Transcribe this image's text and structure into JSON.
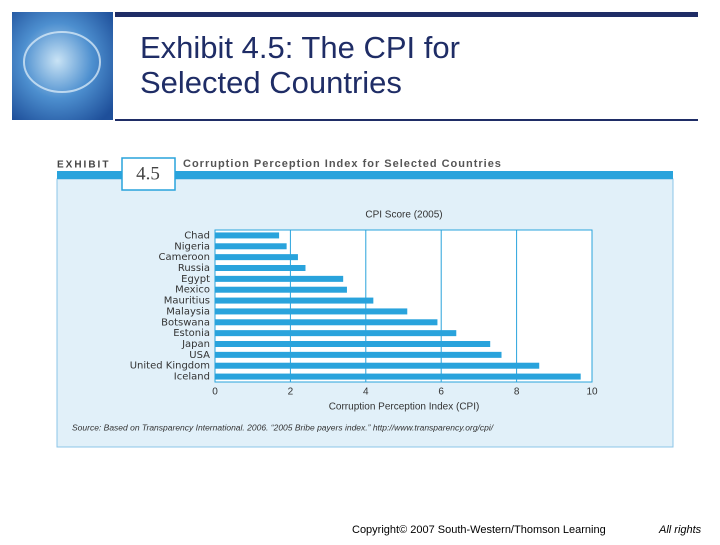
{
  "header": {
    "title_line1": "Exhibit 4.5: The CPI for",
    "title_line2": "Selected Countries"
  },
  "exhibit": {
    "label": "EXHIBIT",
    "number": "4.5"
  },
  "chart_data": {
    "type": "bar",
    "orientation": "horizontal",
    "title": "Corruption Perception Index for Selected Countries",
    "subtitle": "CPI Score (2005)",
    "xlabel": "Corruption Perception Index (CPI)",
    "source": "Source: Based on Transparency International. 2006. “2005 Bribe payers index.” http://www.transparency.org/cpi/",
    "categories": [
      "Chad",
      "Nigeria",
      "Cameroon",
      "Russia",
      "Egypt",
      "Mexico",
      "Mauritius",
      "Malaysia",
      "Botswana",
      "Estonia",
      "Japan",
      "USA",
      "United Kingdom",
      "Iceland"
    ],
    "values": [
      1.7,
      1.9,
      2.2,
      2.4,
      3.4,
      3.5,
      4.2,
      5.1,
      5.9,
      6.4,
      7.3,
      7.6,
      8.6,
      9.7
    ],
    "color": "#29a3dc",
    "xlim": [
      0,
      10
    ],
    "xticks": [
      0,
      2,
      4,
      6,
      8,
      10
    ],
    "grid": true
  },
  "footer": {
    "copyright": "Copyright© 2007 South-Western/Thomson Learning",
    "rights": "All rights"
  }
}
